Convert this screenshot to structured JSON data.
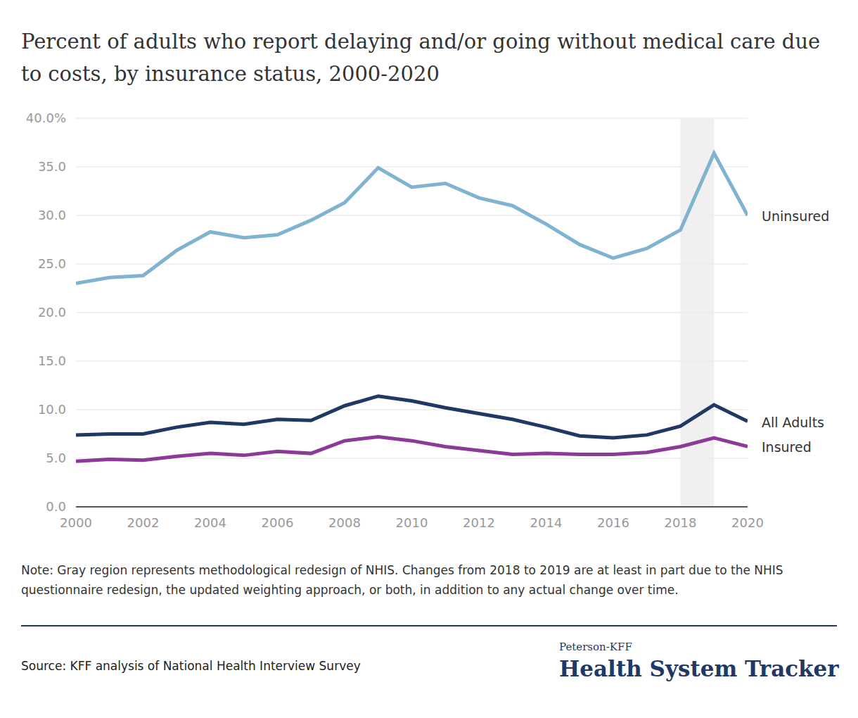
{
  "chart_data": {
    "type": "line",
    "title": "Percent of adults who report delaying and/or going without medical care due to costs, by insurance status, 2000-2020",
    "x": [
      2000,
      2001,
      2002,
      2003,
      2004,
      2005,
      2006,
      2007,
      2008,
      2009,
      2010,
      2011,
      2012,
      2013,
      2014,
      2015,
      2016,
      2017,
      2018,
      2019,
      2020
    ],
    "series": [
      {
        "name": "Uninsured",
        "color": "#7fb3cf",
        "values": [
          23.0,
          23.6,
          23.8,
          26.4,
          28.3,
          27.7,
          28.0,
          29.5,
          31.3,
          34.9,
          32.9,
          33.3,
          31.8,
          31.0,
          29.1,
          27.0,
          25.6,
          26.6,
          28.5,
          36.4,
          30.0
        ]
      },
      {
        "name": "All Adults",
        "color": "#1f3864",
        "values": [
          7.4,
          7.5,
          7.5,
          8.2,
          8.7,
          8.5,
          9.0,
          8.9,
          10.4,
          11.4,
          10.9,
          10.2,
          9.6,
          9.0,
          8.2,
          7.3,
          7.1,
          7.4,
          8.3,
          10.5,
          8.8
        ]
      },
      {
        "name": "Insured",
        "color": "#8b3a98",
        "values": [
          4.7,
          4.9,
          4.8,
          5.2,
          5.5,
          5.3,
          5.7,
          5.5,
          6.8,
          7.2,
          6.8,
          6.2,
          5.8,
          5.4,
          5.5,
          5.4,
          5.4,
          5.6,
          6.2,
          7.1,
          6.2
        ]
      }
    ],
    "xlim": [
      2000,
      2020
    ],
    "xticks": [
      2000,
      2002,
      2004,
      2006,
      2008,
      2010,
      2012,
      2014,
      2016,
      2018,
      2020
    ],
    "ylim": [
      0,
      40
    ],
    "yticks": [
      {
        "value": 0,
        "label": "0.0"
      },
      {
        "value": 5,
        "label": "5.0"
      },
      {
        "value": 10,
        "label": "10.0"
      },
      {
        "value": 15,
        "label": "15.0"
      },
      {
        "value": 20,
        "label": "20.0"
      },
      {
        "value": 25,
        "label": "25.0"
      },
      {
        "value": 30,
        "label": "30.0"
      },
      {
        "value": 35,
        "label": "35.0"
      },
      {
        "value": 40,
        "label": "40.0%"
      }
    ],
    "shaded_x": [
      2018,
      2019
    ],
    "grid": true,
    "marker": "none",
    "line_style": "solid",
    "note": "Note: Gray region represents methodological redesign of NHIS. Changes from 2018 to 2019 are at least in part due to the NHIS questionnaire redesign, the updated weighting approach, or both, in addition to any actual change over time.",
    "source": "Source: KFF analysis of National Health Interview Survey",
    "branding": [
      "Peterson-KFF",
      "Health System Tracker"
    ]
  }
}
